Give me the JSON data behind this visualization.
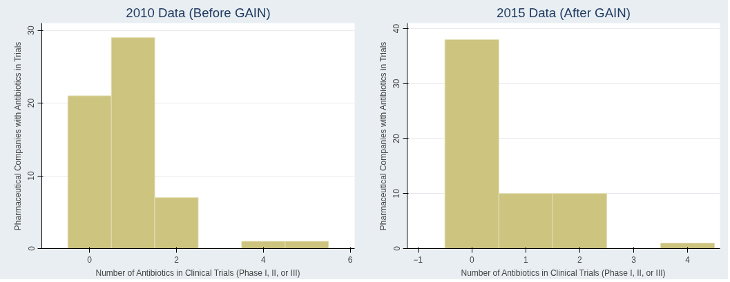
{
  "chart_data": [
    {
      "type": "histogram",
      "title": "2010 Data (Before GAIN)",
      "xlabel": "Number of Antibiotics in Clinical Trials (Phase I, II, or III)",
      "ylabel": "Pharmaceutical Companies with Antibiotics in Trials",
      "bins": [
        -0.5,
        0.5,
        1.5,
        2.5,
        3.5,
        4.5,
        5.5
      ],
      "values": [
        21,
        29,
        7,
        0,
        1,
        1
      ],
      "color": "#ccc47f",
      "xlim": [
        -1.1,
        6.1
      ],
      "xticks": [
        0,
        2,
        4,
        6
      ],
      "ylim": [
        0,
        31
      ],
      "yticks": [
        0,
        10,
        20,
        30
      ],
      "grid": "y"
    },
    {
      "type": "histogram",
      "title": "2015 Data (After GAIN)",
      "xlabel": "Number of Antibiotics in Clinical Trials (Phase I, II, or III)",
      "ylabel": "Pharmaceutical Companies with Antibiotics in Trials",
      "bins": [
        -0.5,
        0.5,
        1.5,
        2.5,
        3.5,
        4.5
      ],
      "values": [
        38,
        10,
        10,
        0,
        1
      ],
      "color": "#ccc47f",
      "xlim": [
        -1.2,
        4.6
      ],
      "xticks": [
        -1,
        0,
        1,
        2,
        3,
        4
      ],
      "ylim": [
        0,
        41
      ],
      "yticks": [
        0,
        10,
        20,
        30,
        40
      ],
      "grid": "y"
    }
  ]
}
